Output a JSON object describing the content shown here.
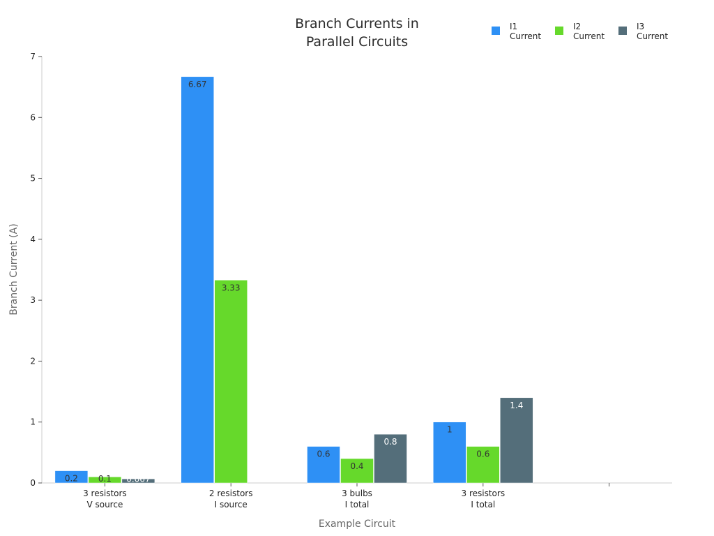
{
  "chart_data": {
    "type": "bar",
    "title": [
      "Branch Currents in",
      "Parallel Circuits"
    ],
    "xlabel": "Example Circuit",
    "ylabel": "Branch Current (A)",
    "ylim": [
      0,
      7
    ],
    "yticks": [
      0,
      1,
      2,
      3,
      4,
      5,
      6,
      7
    ],
    "categories": [
      [
        "3 resistors",
        "V source"
      ],
      [
        "2 resistors",
        "I source"
      ],
      [
        "3 bulbs",
        "I total"
      ],
      [
        "3 resistors",
        "I total"
      ],
      [
        "",
        ""
      ]
    ],
    "series": [
      {
        "name": [
          "I1",
          "Current"
        ],
        "color": "#2e90f5",
        "values": [
          0.2,
          6.67,
          0.6,
          1,
          null
        ],
        "labels": [
          "0.2",
          "6.67",
          "0.6",
          "1",
          ""
        ]
      },
      {
        "name": [
          "I2",
          "Current"
        ],
        "color": "#66d92b",
        "values": [
          0.1,
          3.33,
          0.4,
          0.6,
          null
        ],
        "labels": [
          "0.1",
          "3.33",
          "0.4",
          "0.6",
          ""
        ]
      },
      {
        "name": [
          "I3",
          "Current"
        ],
        "color": "#546e7a",
        "values": [
          0.067,
          null,
          0.8,
          1.4,
          null
        ],
        "labels": [
          "0.067",
          "",
          "0.8",
          "1.4",
          ""
        ]
      }
    ],
    "legend_position": "top-right",
    "grid": false
  }
}
